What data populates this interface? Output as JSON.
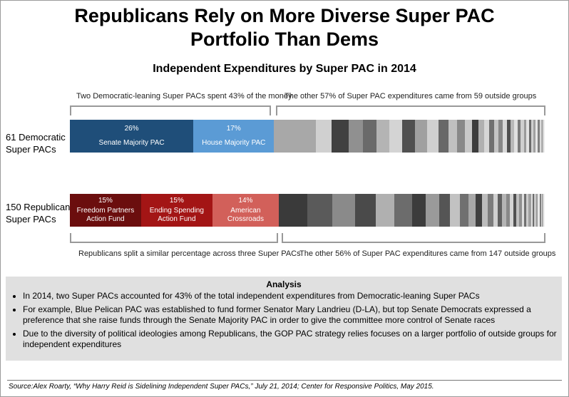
{
  "title_line1": "Republicans Rely on More Diverse Super PAC",
  "title_line2": "Portfolio Than Dems",
  "subtitle": "Independent Expenditures by Super PAC in 2014",
  "notes": {
    "dem_left": "Two Democratic-leaning Super PACs spent 43% of the money",
    "dem_right": "The other 57% of Super PAC expenditures came from 59 outside groups",
    "gop_left": "Republicans split a similar percentage across three Super PACs",
    "gop_right": "The other 56% of Super PAC expenditures came from 147 outside groups"
  },
  "row_labels": {
    "dem_line1": "61 Democratic",
    "dem_line2": "Super PACs",
    "gop_line1": "150 Republican",
    "gop_line2": "Super PACs"
  },
  "chart_data": {
    "type": "bar",
    "orientation": "horizontal-stacked",
    "rows": [
      {
        "label": "61 Democratic Super PACs",
        "named_segments": [
          {
            "pct_label": "26%",
            "name": "Senate Majority PAC",
            "value": 26,
            "color": "#1f4e79"
          },
          {
            "pct_label": "17%",
            "name": "House Majority PAC",
            "value": 17,
            "color": "#5b9bd5"
          }
        ],
        "other": {
          "value": 57,
          "groups": 59
        }
      },
      {
        "label": "150 Republican Super PACs",
        "named_segments": [
          {
            "pct_label": "15%",
            "name_line1": "Freedom Partners",
            "name_line2": "Action Fund",
            "value": 15,
            "color": "#6b0e0e"
          },
          {
            "pct_label": "15%",
            "name_line1": "Ending Spending",
            "name_line2": "Action Fund",
            "value": 15,
            "color": "#a31515"
          },
          {
            "pct_label": "14%",
            "name_line1": "American",
            "name_line2": "Crossroads",
            "value": 14,
            "color": "#d2605a"
          }
        ],
        "other": {
          "value": 56,
          "groups": 147
        }
      }
    ]
  },
  "stripes": {
    "dem": [
      {
        "w": 9.5,
        "c": "#a8a8a8"
      },
      {
        "w": 3.6,
        "c": "#d0d0d0"
      },
      {
        "w": 4.0,
        "c": "#404040"
      },
      {
        "w": 3.2,
        "c": "#909090"
      },
      {
        "w": 3.0,
        "c": "#6a6a6a"
      },
      {
        "w": 3.0,
        "c": "#b4b4b4"
      },
      {
        "w": 3.0,
        "c": "#d4d4d4"
      },
      {
        "w": 2.8,
        "c": "#505050"
      },
      {
        "w": 2.8,
        "c": "#a0a0a0"
      },
      {
        "w": 2.6,
        "c": "#d0d0d0"
      },
      {
        "w": 2.3,
        "c": "#686868"
      },
      {
        "w": 2.0,
        "c": "#c0c0c0"
      },
      {
        "w": 1.8,
        "c": "#888888"
      },
      {
        "w": 1.6,
        "c": "#c8c8c8"
      },
      {
        "w": 1.4,
        "c": "#3c3c3c"
      },
      {
        "w": 1.3,
        "c": "#b0b0b0"
      },
      {
        "w": 1.2,
        "c": "#d6d6d6"
      },
      {
        "w": 1.1,
        "c": "#707070"
      },
      {
        "w": 1.0,
        "c": "#c4c4c4"
      },
      {
        "w": 1.0,
        "c": "#888888"
      },
      {
        "w": 0.9,
        "c": "#d8d8d8"
      },
      {
        "w": 0.9,
        "c": "#505050"
      },
      {
        "w": 0.8,
        "c": "#b8b8b8"
      },
      {
        "w": 0.8,
        "c": "#e0e0e0"
      },
      {
        "w": 0.7,
        "c": "#7a7a7a"
      },
      {
        "w": 0.7,
        "c": "#cfcfcf"
      },
      {
        "w": 0.6,
        "c": "#999999"
      },
      {
        "w": 0.6,
        "c": "#e2e2e2"
      },
      {
        "w": 0.5,
        "c": "#6a6a6a"
      },
      {
        "w": 0.5,
        "c": "#d0d0d0"
      },
      {
        "w": 0.5,
        "c": "#a0a0a0"
      },
      {
        "w": 0.5,
        "c": "#e6e6e6"
      },
      {
        "w": 0.4,
        "c": "#808080"
      },
      {
        "w": 0.4,
        "c": "#dcdcdc"
      },
      {
        "w": 0.4,
        "c": "#b0b0b0"
      },
      {
        "w": 0.4,
        "c": "#ececec"
      }
    ],
    "gop": [
      {
        "w": 6.5,
        "c": "#3a3a3a"
      },
      {
        "w": 5.8,
        "c": "#5a5a5a"
      },
      {
        "w": 5.2,
        "c": "#8a8a8a"
      },
      {
        "w": 4.8,
        "c": "#4a4a4a"
      },
      {
        "w": 4.4,
        "c": "#b0b0b0"
      },
      {
        "w": 4.0,
        "c": "#6c6c6c"
      },
      {
        "w": 3.2,
        "c": "#3c3c3c"
      },
      {
        "w": 3.0,
        "c": "#9a9a9a"
      },
      {
        "w": 2.6,
        "c": "#555555"
      },
      {
        "w": 2.2,
        "c": "#c2c2c2"
      },
      {
        "w": 2.0,
        "c": "#707070"
      },
      {
        "w": 1.7,
        "c": "#a8a8a8"
      },
      {
        "w": 1.5,
        "c": "#404040"
      },
      {
        "w": 1.3,
        "c": "#bcbcbc"
      },
      {
        "w": 1.2,
        "c": "#7c7c7c"
      },
      {
        "w": 1.1,
        "c": "#d0d0d0"
      },
      {
        "w": 1.0,
        "c": "#606060"
      },
      {
        "w": 0.9,
        "c": "#b4b4b4"
      },
      {
        "w": 0.8,
        "c": "#888888"
      },
      {
        "w": 0.8,
        "c": "#d4d4d4"
      },
      {
        "w": 0.7,
        "c": "#505050"
      },
      {
        "w": 0.7,
        "c": "#c0c0c0"
      },
      {
        "w": 0.6,
        "c": "#909090"
      },
      {
        "w": 0.6,
        "c": "#dedede"
      },
      {
        "w": 0.5,
        "c": "#707070"
      },
      {
        "w": 0.5,
        "c": "#cccccc"
      },
      {
        "w": 0.5,
        "c": "#a0a0a0"
      },
      {
        "w": 0.4,
        "c": "#e2e2e2"
      },
      {
        "w": 0.4,
        "c": "#6a6a6a"
      },
      {
        "w": 0.4,
        "c": "#c8c8c8"
      },
      {
        "w": 0.4,
        "c": "#9a9a9a"
      },
      {
        "w": 0.4,
        "c": "#e8e8e8"
      },
      {
        "w": 0.3,
        "c": "#7a7a7a"
      },
      {
        "w": 0.3,
        "c": "#d8d8d8"
      },
      {
        "w": 0.3,
        "c": "#aaaaaa"
      },
      {
        "w": 0.3,
        "c": "#efefef"
      }
    ]
  },
  "analysis": {
    "title": "Analysis",
    "bullets": [
      "In 2014, two Super PACs accounted for 43% of the total independent expenditures from Democratic-leaning Super PACs",
      "For example, Blue Pelican PAC was established to fund former Senator Mary Landrieu (D-LA), but top Senate Democrats expressed a preference that she raise funds through the Senate Majority PAC in order to give the committee more control of Senate races",
      "Due to the diversity of political ideologies among Republicans, the GOP PAC strategy relies focuses on a larger portfolio of outside groups for independent expenditures"
    ]
  },
  "source": "Source:Alex Roarty, “Why Harry Reid is Sidelining Independent Super PACs,” July 21, 2014; Center for Responsive Politics, May 2015."
}
